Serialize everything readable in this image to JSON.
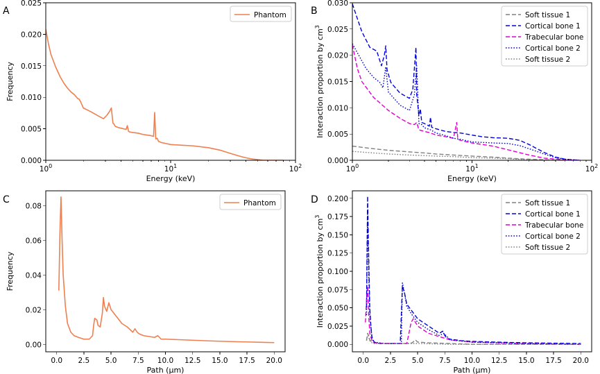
{
  "chart_data": [
    {
      "panel": "A",
      "type": "line",
      "xscale": "log",
      "xlim": [
        1,
        100
      ],
      "ylim": [
        0,
        0.025
      ],
      "xlabel": "Energy (keV)",
      "ylabel": "Frequency",
      "xticks": [
        1,
        10,
        100
      ],
      "xtick_labels": [
        {
          "base": "10",
          "exp": "0"
        },
        {
          "base": "10",
          "exp": "1"
        },
        {
          "base": "10",
          "exp": "2"
        }
      ],
      "yticks": [
        0,
        0.005,
        0.01,
        0.015,
        0.02,
        0.025
      ],
      "ytick_labels": [
        "0.000",
        "0.005",
        "0.010",
        "0.015",
        "0.020",
        "0.025"
      ],
      "legend": "top-right",
      "series": [
        {
          "name": "Phantom",
          "color": "#ef7f4f",
          "dash": "solid",
          "x": [
            1.0,
            1.05,
            1.1,
            1.2,
            1.3,
            1.4,
            1.5,
            1.6,
            1.7,
            1.8,
            1.85,
            1.9,
            2.0,
            2.3,
            2.6,
            2.9,
            3.1,
            3.25,
            3.35,
            3.45,
            3.5,
            3.6,
            3.8,
            4.0,
            4.4,
            4.5,
            4.6,
            4.7,
            5.0,
            5.5,
            6.0,
            6.5,
            7.0,
            7.3,
            7.45,
            7.6,
            7.8,
            8.0,
            8.5,
            9.0,
            10.0,
            12,
            15,
            20,
            25,
            30,
            35,
            40,
            45,
            50,
            55,
            60,
            70,
            80
          ],
          "y": [
            0.0208,
            0.0185,
            0.0168,
            0.0148,
            0.0133,
            0.0122,
            0.0114,
            0.0108,
            0.0104,
            0.0098,
            0.0097,
            0.0093,
            0.0083,
            0.0077,
            0.0071,
            0.0066,
            0.0072,
            0.0078,
            0.0083,
            0.0059,
            0.0058,
            0.0054,
            0.0052,
            0.0051,
            0.0049,
            0.0055,
            0.0046,
            0.0045,
            0.0044,
            0.0043,
            0.0041,
            0.004,
            0.0039,
            0.0038,
            0.0076,
            0.0034,
            0.0035,
            0.003,
            0.0028,
            0.0027,
            0.0025,
            0.0024,
            0.0023,
            0.002,
            0.0016,
            0.0011,
            0.0007,
            0.0004,
            0.0002,
            0.0001,
            0.0,
            0.0,
            0.0,
            0.0
          ]
        }
      ]
    },
    {
      "panel": "B",
      "type": "line",
      "xscale": "log",
      "xlim": [
        1,
        100
      ],
      "ylim": [
        0,
        0.03
      ],
      "xlabel": "Energy (keV)",
      "ylabel": "Interaction proportion by cm",
      "ylabel_sup": "3",
      "xticks": [
        1,
        10,
        100
      ],
      "xtick_labels": [
        {
          "base": "10",
          "exp": "0"
        },
        {
          "base": "10",
          "exp": "1"
        },
        {
          "base": "10",
          "exp": "2"
        }
      ],
      "yticks": [
        0,
        0.005,
        0.01,
        0.015,
        0.02,
        0.025,
        0.03
      ],
      "ytick_labels": [
        "0.000",
        "0.005",
        "0.010",
        "0.015",
        "0.020",
        "0.025",
        "0.030"
      ],
      "legend": "top-right",
      "series": [
        {
          "name": "Soft tissue 1",
          "color": "#808080",
          "dash": "dashed",
          "x": [
            1.0,
            1.5,
            2,
            3,
            4,
            5,
            7,
            10,
            15,
            20,
            30,
            40,
            60
          ],
          "y": [
            0.0027,
            0.0022,
            0.0019,
            0.0016,
            0.0014,
            0.0012,
            0.001,
            0.0008,
            0.0006,
            0.0004,
            0.0002,
            0.0001,
            0.0
          ]
        },
        {
          "name": "Cortical bone 1",
          "color": "#0000dd",
          "dash": "dashed",
          "x": [
            1.0,
            1.1,
            1.2,
            1.4,
            1.6,
            1.75,
            1.85,
            1.9,
            1.95,
            2.1,
            2.5,
            3.0,
            3.2,
            3.4,
            3.45,
            3.6,
            3.7,
            3.8,
            4.0,
            4.4,
            4.5,
            4.6,
            5.0,
            6.0,
            7.0,
            8.0,
            10,
            12,
            15,
            20,
            25,
            30,
            40,
            50,
            60,
            80
          ],
          "y": [
            0.0298,
            0.027,
            0.0245,
            0.0215,
            0.0208,
            0.018,
            0.02,
            0.0218,
            0.0172,
            0.0148,
            0.0128,
            0.0118,
            0.0135,
            0.0215,
            0.0125,
            0.0085,
            0.0098,
            0.0072,
            0.007,
            0.0065,
            0.0082,
            0.0063,
            0.006,
            0.0055,
            0.0053,
            0.0052,
            0.0048,
            0.0045,
            0.0043,
            0.0042,
            0.0038,
            0.003,
            0.0015,
            0.0006,
            0.0002,
            0.0
          ]
        },
        {
          "name": "Trabecular bone",
          "color": "#dd00cc",
          "dash": "dashed",
          "x": [
            1.0,
            1.1,
            1.2,
            1.5,
            2.0,
            2.5,
            3.0,
            3.3,
            3.45,
            3.6,
            4.0,
            4.5,
            5.0,
            6.0,
            7.0,
            7.45,
            7.6,
            8.0,
            10,
            15,
            20,
            30,
            40,
            60,
            80
          ],
          "y": [
            0.022,
            0.0175,
            0.015,
            0.012,
            0.0095,
            0.008,
            0.007,
            0.0068,
            0.0072,
            0.0058,
            0.0055,
            0.0052,
            0.0048,
            0.0045,
            0.0042,
            0.0072,
            0.004,
            0.0038,
            0.0033,
            0.0027,
            0.002,
            0.001,
            0.0004,
            0.0001,
            0.0
          ]
        },
        {
          "name": "Cortical bone 2",
          "color": "#0000dd",
          "dash": "dotted",
          "x": [
            1.0,
            1.1,
            1.3,
            1.5,
            1.7,
            1.8,
            1.9,
            2.0,
            2.5,
            3.0,
            3.3,
            3.45,
            3.6,
            3.8,
            4.0,
            4.5,
            5.0,
            6.0,
            7.0,
            8.0,
            10,
            15,
            20,
            25,
            30,
            40,
            50,
            60,
            80
          ],
          "y": [
            0.0222,
            0.0205,
            0.0175,
            0.0158,
            0.0148,
            0.0138,
            0.0178,
            0.013,
            0.0105,
            0.0095,
            0.0125,
            0.018,
            0.007,
            0.0068,
            0.0062,
            0.0058,
            0.0052,
            0.0047,
            0.0042,
            0.004,
            0.0035,
            0.0033,
            0.0032,
            0.0028,
            0.0022,
            0.0012,
            0.0005,
            0.0002,
            0.0
          ]
        },
        {
          "name": "Soft tissue 2",
          "color": "#808080",
          "dash": "dotted",
          "x": [
            1.0,
            1.5,
            2,
            3,
            4,
            5,
            7,
            10,
            15,
            20,
            30,
            40,
            60
          ],
          "y": [
            0.0017,
            0.0014,
            0.0012,
            0.001,
            0.0009,
            0.0008,
            0.0007,
            0.0005,
            0.0004,
            0.0003,
            0.0001,
            0.0,
            0.0
          ]
        }
      ]
    },
    {
      "panel": "C",
      "type": "line",
      "xscale": "linear",
      "xlim": [
        -1,
        21
      ],
      "ylim": [
        -0.0043,
        0.0885
      ],
      "xlabel": "Path (µm)",
      "ylabel": "Frequency",
      "xticks": [
        0,
        2.5,
        5,
        7.5,
        10,
        12.5,
        15,
        17.5,
        20
      ],
      "xtick_labels": [
        "0.0",
        "2.5",
        "5.0",
        "7.5",
        "10.0",
        "12.5",
        "15.0",
        "17.5",
        "20.0"
      ],
      "yticks": [
        0,
        0.02,
        0.04,
        0.06,
        0.08
      ],
      "ytick_labels": [
        "0.00",
        "0.02",
        "0.04",
        "0.06",
        "0.08"
      ],
      "legend": "top-right",
      "series": [
        {
          "name": "Phantom",
          "color": "#ef7f4f",
          "dash": "solid",
          "x": [
            0.2,
            0.3,
            0.4,
            0.5,
            0.6,
            0.8,
            1.0,
            1.3,
            1.6,
            2.0,
            2.5,
            3.0,
            3.3,
            3.4,
            3.5,
            3.7,
            3.8,
            4.0,
            4.2,
            4.3,
            4.4,
            4.6,
            4.8,
            5.0,
            5.5,
            6.0,
            6.5,
            7.0,
            7.2,
            7.4,
            7.6,
            8.0,
            9.0,
            9.3,
            9.6,
            10.0,
            12,
            14,
            16,
            18,
            20
          ],
          "y": [
            0.031,
            0.064,
            0.085,
            0.06,
            0.04,
            0.022,
            0.012,
            0.007,
            0.005,
            0.004,
            0.003,
            0.003,
            0.005,
            0.011,
            0.015,
            0.014,
            0.011,
            0.01,
            0.018,
            0.027,
            0.022,
            0.019,
            0.024,
            0.02,
            0.016,
            0.012,
            0.01,
            0.007,
            0.009,
            0.007,
            0.006,
            0.005,
            0.004,
            0.005,
            0.003,
            0.003,
            0.0025,
            0.002,
            0.0016,
            0.0013,
            0.001
          ]
        }
      ]
    },
    {
      "panel": "D",
      "type": "line",
      "xscale": "linear",
      "xlim": [
        -1,
        21
      ],
      "ylim": [
        -0.0103,
        0.2103
      ],
      "xlabel": "Path (µm)",
      "ylabel": "Interaction proportion by cm",
      "ylabel_sup": "3",
      "xticks": [
        0,
        2.5,
        5,
        7.5,
        10,
        12.5,
        15,
        17.5,
        20
      ],
      "xtick_labels": [
        "0.0",
        "2.5",
        "5.0",
        "7.5",
        "10.0",
        "12.5",
        "15.0",
        "17.5",
        "20.0"
      ],
      "yticks": [
        0,
        0.025,
        0.05,
        0.075,
        0.1,
        0.125,
        0.15,
        0.175,
        0.2
      ],
      "ytick_labels": [
        "0.000",
        "0.025",
        "0.050",
        "0.075",
        "0.100",
        "0.125",
        "0.150",
        "0.175",
        "0.200"
      ],
      "legend": "top-right",
      "series": [
        {
          "name": "Soft tissue 1",
          "color": "#808080",
          "dash": "dashed",
          "x": [
            0.3,
            0.4,
            0.5,
            0.6,
            0.8,
            1.0,
            2.0,
            3.0,
            4.0,
            4.5,
            4.8,
            5.0,
            6.0,
            8.0,
            10,
            15,
            20
          ],
          "y": [
            0.005,
            0.015,
            0.012,
            0.006,
            0.003,
            0.002,
            0.001,
            0.001,
            0.001,
            0.002,
            0.006,
            0.003,
            0.002,
            0.001,
            0.0,
            0.0,
            0.0
          ]
        },
        {
          "name": "Cortical bone 1",
          "color": "#0000dd",
          "dash": "dashed",
          "x": [
            0.3,
            0.4,
            0.5,
            0.6,
            0.7,
            0.8,
            1.0,
            1.5,
            2.0,
            3.0,
            3.4,
            3.6,
            3.8,
            4.0,
            4.5,
            5.0,
            6.0,
            7.0,
            7.3,
            7.5,
            7.7,
            8.0,
            9.0,
            10,
            12,
            15,
            20
          ],
          "y": [
            0.05,
            0.203,
            0.12,
            0.05,
            0.025,
            0.01,
            0.003,
            0.001,
            0.001,
            0.001,
            0.001,
            0.08,
            0.07,
            0.055,
            0.045,
            0.035,
            0.025,
            0.015,
            0.018,
            0.012,
            0.008,
            0.007,
            0.005,
            0.004,
            0.003,
            0.002,
            0.001
          ]
        },
        {
          "name": "Trabecular bone",
          "color": "#dd00cc",
          "dash": "dashed",
          "x": [
            0.2,
            0.3,
            0.4,
            0.5,
            0.6,
            0.8,
            1.0,
            2.0,
            3.0,
            4.0,
            4.2,
            4.4,
            4.6,
            5.0,
            6.0,
            8.0,
            10,
            15,
            20
          ],
          "y": [
            0.03,
            0.06,
            0.08,
            0.04,
            0.015,
            0.005,
            0.002,
            0.001,
            0.001,
            0.001,
            0.015,
            0.03,
            0.035,
            0.025,
            0.015,
            0.006,
            0.003,
            0.001,
            0.0
          ]
        },
        {
          "name": "Cortical bone 2",
          "color": "#0000dd",
          "dash": "dotted",
          "x": [
            0.3,
            0.4,
            0.5,
            0.6,
            0.8,
            1.0,
            2.0,
            3.0,
            3.5,
            3.6,
            3.8,
            4.0,
            4.5,
            5.0,
            6.0,
            7.0,
            7.4,
            8.0,
            10,
            15,
            20
          ],
          "y": [
            0.04,
            0.18,
            0.1,
            0.04,
            0.008,
            0.003,
            0.001,
            0.001,
            0.001,
            0.084,
            0.07,
            0.052,
            0.04,
            0.03,
            0.02,
            0.012,
            0.015,
            0.006,
            0.003,
            0.001,
            0.0
          ]
        },
        {
          "name": "Soft tissue 2",
          "color": "#808080",
          "dash": "dotted",
          "x": [
            0.3,
            0.4,
            0.5,
            0.6,
            0.8,
            1.0,
            2.0,
            4.0,
            5.0,
            8.0,
            10,
            20
          ],
          "y": [
            0.005,
            0.012,
            0.01,
            0.005,
            0.002,
            0.001,
            0.001,
            0.001,
            0.001,
            0.0,
            0.0,
            0.0
          ]
        }
      ]
    }
  ]
}
